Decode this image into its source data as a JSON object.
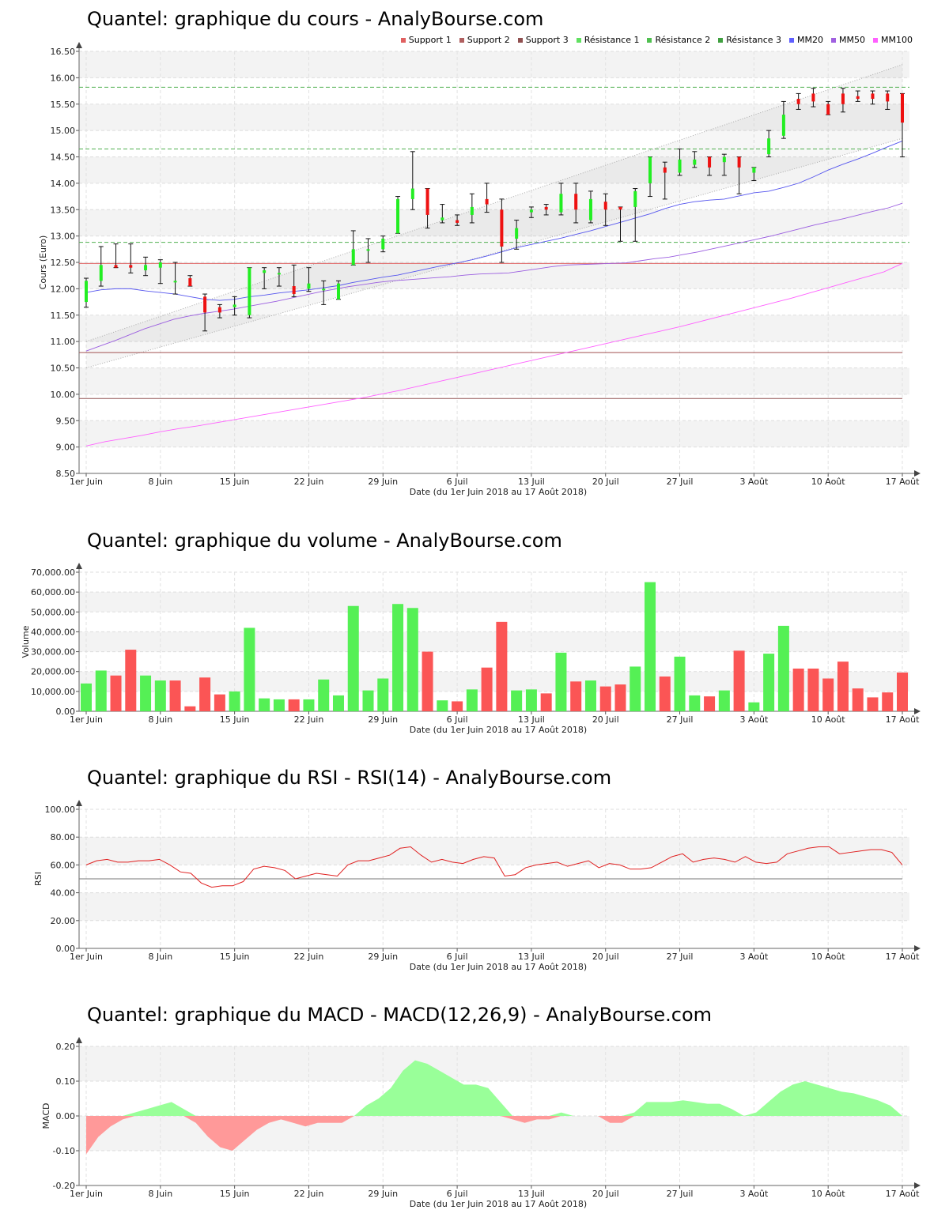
{
  "charts": {
    "price": {
      "title": "Quantel: graphique du cours - AnalyBourse.com",
      "ylabel": "Cours (Euro)",
      "xlabel": "Date (du 1er Juin 2018 au 17 Août 2018)"
    },
    "volume": {
      "title": "Quantel: graphique du volume - AnalyBourse.com",
      "ylabel": "Volume",
      "xlabel": "Date (du 1er Juin 2018 au 17 Août 2018)"
    },
    "rsi": {
      "title": "Quantel: graphique du RSI - RSI(14) - AnalyBourse.com",
      "ylabel": "RSI",
      "xlabel": "Date (du 1er Juin 2018 au 17 Août 2018)"
    },
    "macd": {
      "title": "Quantel: graphique du MACD - MACD(12,26,9) - AnalyBourse.com",
      "ylabel": "MACD",
      "xlabel": "Date (du 1er Juin 2018 au 17 Août 2018)"
    }
  },
  "legend": [
    {
      "label": "Support 1",
      "color": "#e06060"
    },
    {
      "label": "Support 2",
      "color": "#b06060"
    },
    {
      "label": "Support 3",
      "color": "#905050"
    },
    {
      "label": "Résistance 1",
      "color": "#60e060"
    },
    {
      "label": "Résistance 2",
      "color": "#50c050"
    },
    {
      "label": "Résistance 3",
      "color": "#40a040"
    },
    {
      "label": "MM20",
      "color": "#6060ff"
    },
    {
      "label": "MM50",
      "color": "#a060e0"
    },
    {
      "label": "MM100",
      "color": "#ff60ff"
    }
  ],
  "chart_data": [
    {
      "type": "candlestick",
      "id": "price",
      "x_ticks": [
        "1er Juin",
        "8 Juin",
        "15 Juin",
        "22 Juin",
        "29 Juin",
        "6 Juil",
        "13 Juil",
        "20 Juil",
        "27 Juil",
        "3 Août",
        "10 Août",
        "17 Août"
      ],
      "y_ticks": [
        "8.50",
        "9.00",
        "9.50",
        "10.00",
        "10.50",
        "11.00",
        "11.50",
        "12.00",
        "12.50",
        "13.00",
        "13.50",
        "14.00",
        "14.50",
        "15.00",
        "15.50",
        "16.00",
        "16.50"
      ],
      "ylim": [
        8.5,
        16.5
      ],
      "candles": [
        {
          "o": 11.75,
          "c": 12.15,
          "h": 12.2,
          "l": 11.65
        },
        {
          "o": 12.15,
          "c": 12.45,
          "h": 12.8,
          "l": 12.05
        },
        {
          "o": 12.45,
          "c": 12.4,
          "h": 12.85,
          "l": 12.4
        },
        {
          "o": 12.45,
          "c": 12.4,
          "h": 12.85,
          "l": 12.3
        },
        {
          "o": 12.35,
          "c": 12.45,
          "h": 12.6,
          "l": 12.25
        },
        {
          "o": 12.4,
          "c": 12.5,
          "h": 12.55,
          "l": 12.1
        },
        {
          "o": 12.15,
          "c": 12.15,
          "h": 12.5,
          "l": 11.9
        },
        {
          "o": 12.2,
          "c": 12.05,
          "h": 12.25,
          "l": 12.05
        },
        {
          "o": 11.85,
          "c": 11.55,
          "h": 11.9,
          "l": 11.2
        },
        {
          "o": 11.65,
          "c": 11.55,
          "h": 11.7,
          "l": 11.45
        },
        {
          "o": 11.65,
          "c": 11.7,
          "h": 11.85,
          "l": 11.5
        },
        {
          "o": 11.5,
          "c": 12.4,
          "h": 12.4,
          "l": 11.45
        },
        {
          "o": 12.3,
          "c": 12.35,
          "h": 12.4,
          "l": 12.0
        },
        {
          "o": 12.3,
          "c": 12.3,
          "h": 12.4,
          "l": 12.05
        },
        {
          "o": 12.05,
          "c": 11.9,
          "h": 12.45,
          "l": 11.85
        },
        {
          "o": 12.0,
          "c": 12.1,
          "h": 12.4,
          "l": 11.95
        },
        {
          "o": 12.0,
          "c": 12.0,
          "h": 12.15,
          "l": 11.7
        },
        {
          "o": 11.8,
          "c": 12.1,
          "h": 12.15,
          "l": 11.8
        },
        {
          "o": 12.45,
          "c": 12.75,
          "h": 13.1,
          "l": 12.45
        },
        {
          "o": 12.75,
          "c": 12.75,
          "h": 12.95,
          "l": 12.5
        },
        {
          "o": 12.75,
          "c": 12.95,
          "h": 13.0,
          "l": 12.7
        },
        {
          "o": 13.05,
          "c": 13.7,
          "h": 13.75,
          "l": 13.05
        },
        {
          "o": 13.7,
          "c": 13.9,
          "h": 14.6,
          "l": 13.5
        },
        {
          "o": 13.9,
          "c": 13.4,
          "h": 13.9,
          "l": 13.15
        },
        {
          "o": 13.3,
          "c": 13.35,
          "h": 13.6,
          "l": 13.25
        },
        {
          "o": 13.3,
          "c": 13.25,
          "h": 13.4,
          "l": 13.2
        },
        {
          "o": 13.4,
          "c": 13.55,
          "h": 13.8,
          "l": 13.25
        },
        {
          "o": 13.7,
          "c": 13.6,
          "h": 14.0,
          "l": 13.45
        },
        {
          "o": 13.5,
          "c": 12.8,
          "h": 13.7,
          "l": 12.5
        },
        {
          "o": 12.95,
          "c": 13.15,
          "h": 13.3,
          "l": 12.75
        },
        {
          "o": 13.45,
          "c": 13.5,
          "h": 13.55,
          "l": 13.35
        },
        {
          "o": 13.55,
          "c": 13.5,
          "h": 13.6,
          "l": 13.4
        },
        {
          "o": 13.45,
          "c": 13.8,
          "h": 14.0,
          "l": 13.4
        },
        {
          "o": 13.8,
          "c": 13.5,
          "h": 14.0,
          "l": 13.25
        },
        {
          "o": 13.3,
          "c": 13.7,
          "h": 13.85,
          "l": 13.25
        },
        {
          "o": 13.65,
          "c": 13.5,
          "h": 13.8,
          "l": 13.2
        },
        {
          "o": 13.55,
          "c": 13.5,
          "h": 13.55,
          "l": 12.9
        },
        {
          "o": 13.55,
          "c": 13.85,
          "h": 13.9,
          "l": 12.9
        },
        {
          "o": 14.0,
          "c": 14.5,
          "h": 14.5,
          "l": 13.75
        },
        {
          "o": 14.3,
          "c": 14.2,
          "h": 14.4,
          "l": 13.7
        },
        {
          "o": 14.2,
          "c": 14.45,
          "h": 14.65,
          "l": 14.15
        },
        {
          "o": 14.35,
          "c": 14.45,
          "h": 14.6,
          "l": 14.3
        },
        {
          "o": 14.5,
          "c": 14.3,
          "h": 14.5,
          "l": 14.15
        },
        {
          "o": 14.4,
          "c": 14.5,
          "h": 14.55,
          "l": 14.15
        },
        {
          "o": 14.5,
          "c": 14.3,
          "h": 14.5,
          "l": 13.8
        },
        {
          "o": 14.2,
          "c": 14.3,
          "h": 14.3,
          "l": 14.05
        },
        {
          "o": 14.55,
          "c": 14.85,
          "h": 15.0,
          "l": 14.5
        },
        {
          "o": 14.9,
          "c": 15.3,
          "h": 15.55,
          "l": 14.85
        },
        {
          "o": 15.6,
          "c": 15.5,
          "h": 15.7,
          "l": 15.4
        },
        {
          "o": 15.7,
          "c": 15.55,
          "h": 15.8,
          "l": 15.45
        },
        {
          "o": 15.5,
          "c": 15.3,
          "h": 15.55,
          "l": 15.3
        },
        {
          "o": 15.7,
          "c": 15.5,
          "h": 15.8,
          "l": 15.35
        },
        {
          "o": 15.65,
          "c": 15.6,
          "h": 15.75,
          "l": 15.55
        },
        {
          "o": 15.7,
          "c": 15.6,
          "h": 15.75,
          "l": 15.5
        },
        {
          "o": 15.7,
          "c": 15.55,
          "h": 15.75,
          "l": 15.4
        },
        {
          "o": 15.7,
          "c": 15.15,
          "h": 15.7,
          "l": 14.5
        }
      ],
      "support_lines": [
        12.48,
        10.79,
        9.92
      ],
      "resistance_lines": [
        12.88,
        14.65,
        15.82
      ],
      "mm20": [
        11.93,
        11.98,
        12.0,
        12.0,
        11.96,
        11.93,
        11.9,
        11.85,
        11.8,
        11.78,
        11.8,
        11.85,
        11.88,
        11.92,
        11.95,
        11.98,
        12.02,
        12.06,
        12.12,
        12.17,
        12.22,
        12.26,
        12.32,
        12.38,
        12.44,
        12.49,
        12.55,
        12.62,
        12.7,
        12.78,
        12.84,
        12.9,
        12.96,
        13.03,
        13.1,
        13.18,
        13.26,
        13.34,
        13.42,
        13.52,
        13.6,
        13.65,
        13.68,
        13.7,
        13.76,
        13.82,
        13.85,
        13.92,
        14.0,
        14.12,
        14.25,
        14.36,
        14.46,
        14.57,
        14.69,
        14.8
      ],
      "mm50": [
        10.82,
        10.92,
        11.02,
        11.13,
        11.24,
        11.33,
        11.42,
        11.48,
        11.53,
        11.57,
        11.61,
        11.66,
        11.71,
        11.76,
        11.82,
        11.88,
        11.94,
        11.99,
        12.04,
        12.08,
        12.12,
        12.15,
        12.17,
        12.19,
        12.21,
        12.23,
        12.26,
        12.28,
        12.29,
        12.3,
        12.34,
        12.38,
        12.42,
        12.45,
        12.46,
        12.47,
        12.48,
        12.49,
        12.53,
        12.57,
        12.6,
        12.65,
        12.7,
        12.76,
        12.82,
        12.88,
        12.94,
        13.0,
        13.07,
        13.14,
        13.21,
        13.27,
        13.33,
        13.4,
        13.47,
        13.53,
        13.62
      ],
      "mm100": [
        9.02,
        9.1,
        9.16,
        9.22,
        9.29,
        9.35,
        9.4,
        9.46,
        9.52,
        9.58,
        9.64,
        9.7,
        9.76,
        9.82,
        9.88,
        9.94,
        10.01,
        10.08,
        10.16,
        10.24,
        10.32,
        10.4,
        10.48,
        10.56,
        10.64,
        10.72,
        10.8,
        10.88,
        10.96,
        11.04,
        11.12,
        11.2,
        11.28,
        11.37,
        11.46,
        11.55,
        11.64,
        11.73,
        11.82,
        11.92,
        12.02,
        12.12,
        12.22,
        12.32,
        12.48
      ],
      "channel": {
        "upper": [
          11.0,
          16.25
        ],
        "lower": [
          10.5,
          14.85
        ]
      }
    },
    {
      "type": "bar",
      "id": "volume",
      "x_ticks": [
        "1er Juin",
        "8 Juin",
        "15 Juin",
        "22 Juin",
        "29 Juin",
        "6 Juil",
        "13 Juil",
        "20 Juil",
        "27 Juil",
        "3 Août",
        "10 Août",
        "17 Août"
      ],
      "y_ticks": [
        "0.00",
        "10,000.00",
        "20,000.00",
        "30,000.00",
        "40,000.00",
        "50,000.00",
        "60,000.00",
        "70,000.00"
      ],
      "ylim": [
        0,
        70000
      ],
      "values": [
        14000,
        20500,
        18000,
        31000,
        18000,
        15500,
        15500,
        2500,
        17000,
        8500,
        10000,
        42000,
        6500,
        6000,
        6000,
        6000,
        16000,
        8000,
        53000,
        10500,
        16500,
        54000,
        52000,
        30000,
        5500,
        5000,
        11000,
        22000,
        45000,
        10500,
        11000,
        9000,
        29500,
        15000,
        15500,
        12500,
        13500,
        22500,
        65000,
        17500,
        27500,
        8000,
        7500,
        10500,
        30500,
        4500,
        29000,
        43000,
        21500,
        21500,
        16500,
        25000,
        11500,
        7000,
        9500,
        19500
      ],
      "up": [
        true,
        true,
        false,
        false,
        true,
        true,
        false,
        false,
        false,
        false,
        true,
        true,
        true,
        true,
        false,
        true,
        true,
        true,
        true,
        true,
        true,
        true,
        true,
        false,
        true,
        false,
        true,
        false,
        false,
        true,
        true,
        false,
        true,
        false,
        true,
        false,
        false,
        true,
        true,
        false,
        true,
        true,
        false,
        true,
        false,
        true,
        true,
        true,
        false,
        false,
        false,
        false,
        false,
        false,
        false,
        false
      ]
    },
    {
      "type": "line",
      "id": "rsi",
      "x_ticks": [
        "1er Juin",
        "8 Juin",
        "15 Juin",
        "22 Juin",
        "29 Juin",
        "6 Juil",
        "13 Juil",
        "20 Juil",
        "27 Juil",
        "3 Août",
        "10 Août",
        "17 Août"
      ],
      "y_ticks": [
        "0.00",
        "20.00",
        "40.00",
        "60.00",
        "80.00",
        "100.00"
      ],
      "ylim": [
        0,
        100
      ],
      "reference": 50,
      "values": [
        60,
        63,
        64,
        62,
        62,
        63,
        63,
        64,
        60,
        55,
        54,
        47,
        44,
        45,
        45,
        48,
        57,
        59,
        58,
        56,
        50,
        52,
        54,
        53,
        52,
        60,
        63,
        63,
        65,
        67,
        72,
        73,
        67,
        62,
        64,
        62,
        61,
        64,
        66,
        65,
        52,
        53,
        58,
        60,
        61,
        62,
        59,
        61,
        63,
        58,
        61,
        60,
        57,
        57,
        58,
        62,
        66,
        68,
        62,
        64,
        65,
        64,
        62,
        66,
        62,
        61,
        62,
        68,
        70,
        72,
        73,
        73,
        68,
        69,
        70,
        71,
        71,
        69,
        60
      ]
    },
    {
      "type": "area",
      "id": "macd",
      "x_ticks": [
        "1er Juin",
        "8 Juin",
        "15 Juin",
        "22 Juin",
        "29 Juin",
        "6 Juil",
        "13 Juil",
        "20 Juil",
        "27 Juil",
        "3 Août",
        "10 Août",
        "17 Août"
      ],
      "y_ticks": [
        "-0.20",
        "-0.10",
        "0.00",
        "0.10",
        "0.20"
      ],
      "ylim": [
        -0.2,
        0.2
      ],
      "values": [
        -0.11,
        -0.06,
        -0.03,
        -0.01,
        0.01,
        0.02,
        0.03,
        0.04,
        0.02,
        -0.02,
        -0.06,
        -0.09,
        -0.1,
        -0.07,
        -0.04,
        -0.02,
        -0.01,
        -0.02,
        -0.03,
        -0.02,
        -0.02,
        -0.02,
        0.0,
        0.03,
        0.05,
        0.08,
        0.13,
        0.16,
        0.15,
        0.13,
        0.11,
        0.09,
        0.09,
        0.08,
        0.04,
        -0.01,
        -0.02,
        -0.01,
        -0.01,
        0.01,
        0.0,
        0.0,
        0.0,
        -0.02,
        -0.02,
        0.01,
        0.04,
        0.04,
        0.04,
        0.045,
        0.04,
        0.035,
        0.035,
        0.02,
        0.0,
        0.01,
        0.04,
        0.07,
        0.09,
        0.1,
        0.09,
        0.08,
        0.07,
        0.065,
        0.055,
        0.045,
        0.03,
        0.0
      ]
    }
  ]
}
